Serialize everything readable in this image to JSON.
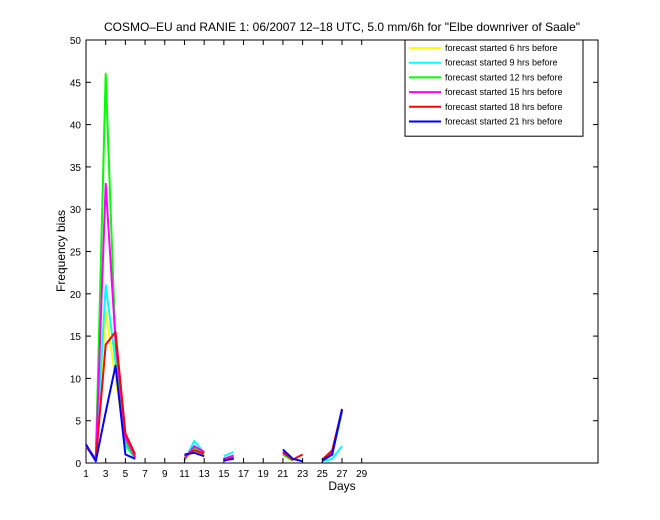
{
  "chart_data": {
    "type": "line",
    "title": "COSMO–EU and RANIE 1: 06/2007 12–18 UTC, 5.0 mm/6h for \"Elbe downriver of Saale\"",
    "xlabel": "Days",
    "ylabel": "Frequency bias",
    "xlim": [
      1,
      53
    ],
    "ylim": [
      0,
      50
    ],
    "xticks": [
      1,
      3,
      5,
      7,
      9,
      11,
      13,
      15,
      17,
      19,
      21,
      23,
      25,
      27,
      29
    ],
    "yticks": [
      0,
      5,
      10,
      15,
      20,
      25,
      30,
      35,
      40,
      45,
      50
    ],
    "grid": false,
    "legend_position": "top-right",
    "series": [
      {
        "name": "forecast started  6 hrs before",
        "color": "#ffff00",
        "points": [
          [
            1,
            2.0
          ],
          [
            2,
            0.5
          ],
          [
            3,
            18.0
          ],
          [
            4,
            10.0
          ],
          [
            5,
            2.5
          ],
          [
            6,
            0.8
          ],
          [
            null,
            null
          ],
          [
            11,
            0.3
          ],
          [
            12,
            1.5
          ],
          [
            13,
            1.0
          ],
          [
            null,
            null
          ],
          [
            15,
            0.5
          ],
          [
            16,
            0.8
          ],
          [
            null,
            null
          ],
          [
            21,
            1.0
          ],
          [
            22,
            0.3
          ],
          [
            null,
            null
          ],
          [
            25,
            0.3
          ],
          [
            26,
            1.0
          ],
          [
            27,
            6.0
          ]
        ]
      },
      {
        "name": "forecast started  9 hrs before",
        "color": "#00ffff",
        "points": [
          [
            1,
            2.0
          ],
          [
            2,
            0.3
          ],
          [
            3,
            21.0
          ],
          [
            4,
            12.0
          ],
          [
            5,
            2.0
          ],
          [
            6,
            0.6
          ],
          [
            null,
            null
          ],
          [
            11,
            0.3
          ],
          [
            12,
            2.6
          ],
          [
            13,
            1.2
          ],
          [
            null,
            null
          ],
          [
            15,
            0.8
          ],
          [
            16,
            1.3
          ],
          [
            null,
            null
          ],
          [
            21,
            1.2
          ],
          [
            22,
            0.4
          ],
          [
            null,
            null
          ],
          [
            25,
            0.2
          ],
          [
            26,
            0.5
          ],
          [
            27,
            2.0
          ]
        ]
      },
      {
        "name": "forecast started 12 hrs before",
        "color": "#00ff00",
        "points": [
          [
            1,
            2.0
          ],
          [
            2,
            0.5
          ],
          [
            3,
            46.0
          ],
          [
            4,
            14.0
          ],
          [
            5,
            2.5
          ],
          [
            6,
            0.5
          ],
          [
            null,
            null
          ],
          [
            11,
            0.5
          ],
          [
            12,
            1.8
          ],
          [
            13,
            1.2
          ],
          [
            null,
            null
          ],
          [
            15,
            0.4
          ],
          [
            16,
            0.8
          ],
          [
            null,
            null
          ],
          [
            21,
            1.0
          ],
          [
            22,
            0.3
          ],
          [
            null,
            null
          ],
          [
            25,
            0.3
          ],
          [
            26,
            1.0
          ],
          [
            27,
            6.0
          ]
        ]
      },
      {
        "name": "forecast started 15 hrs before",
        "color": "#ff00ff",
        "points": [
          [
            1,
            2.0
          ],
          [
            2,
            0.5
          ],
          [
            3,
            33.0
          ],
          [
            4,
            14.5
          ],
          [
            5,
            3.0
          ],
          [
            6,
            0.7
          ],
          [
            null,
            null
          ],
          [
            11,
            0.5
          ],
          [
            12,
            2.0
          ],
          [
            13,
            1.3
          ],
          [
            null,
            null
          ],
          [
            15,
            0.5
          ],
          [
            16,
            0.9
          ],
          [
            null,
            null
          ],
          [
            21,
            1.2
          ],
          [
            22,
            0.4
          ],
          [
            null,
            null
          ],
          [
            25,
            0.3
          ],
          [
            26,
            1.2
          ],
          [
            27,
            6.2
          ]
        ]
      },
      {
        "name": "forecast started 18 hrs before",
        "color": "#ff0000",
        "points": [
          [
            1,
            2.0
          ],
          [
            2,
            0.3
          ],
          [
            3,
            14.0
          ],
          [
            4,
            15.5
          ],
          [
            5,
            3.5
          ],
          [
            6,
            1.0
          ],
          [
            null,
            null
          ],
          [
            11,
            0.8
          ],
          [
            12,
            1.5
          ],
          [
            13,
            1.1
          ],
          [
            null,
            null
          ],
          [
            15,
            0.3
          ],
          [
            16,
            0.6
          ],
          [
            null,
            null
          ],
          [
            21,
            1.3
          ],
          [
            22,
            0.4
          ],
          [
            23,
            1.0
          ],
          [
            null,
            null
          ],
          [
            25,
            0.4
          ],
          [
            26,
            1.5
          ],
          [
            27,
            6.3
          ]
        ]
      },
      {
        "name": "forecast started 21 hrs before",
        "color": "#0000ff",
        "points": [
          [
            1,
            2.2
          ],
          [
            2,
            0.2
          ],
          [
            3,
            6.0
          ],
          [
            4,
            11.5
          ],
          [
            5,
            1.0
          ],
          [
            6,
            0.5
          ],
          [
            null,
            null
          ],
          [
            11,
            1.0
          ],
          [
            12,
            1.2
          ],
          [
            13,
            0.8
          ],
          [
            null,
            null
          ],
          [
            15,
            0.3
          ],
          [
            16,
            0.5
          ],
          [
            null,
            null
          ],
          [
            21,
            1.6
          ],
          [
            22,
            0.5
          ],
          [
            23,
            0.2
          ],
          [
            null,
            null
          ],
          [
            25,
            0.3
          ],
          [
            26,
            1.0
          ],
          [
            27,
            6.4
          ]
        ]
      }
    ]
  }
}
